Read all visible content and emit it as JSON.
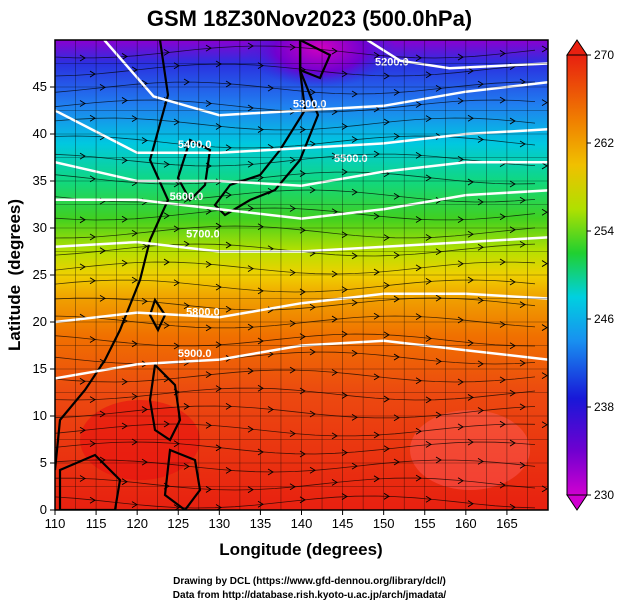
{
  "title": "GSM 18Z30Nov2023 (500.0hPa)",
  "credits": {
    "line1": "Drawing by DCL (https://www.gfd-dennou.org/library/dcl/)",
    "line2": "Data from http://database.rish.kyoto-u.ac.jp/arch/jmadata/"
  },
  "chart_data": {
    "type": "heatmap",
    "xlabel": "Longitude (degrees)",
    "ylabel": "Latitude  (degrees)",
    "xlim": [
      110,
      170
    ],
    "ylim": [
      0,
      50
    ],
    "xticks": [
      110,
      115,
      120,
      125,
      130,
      135,
      140,
      145,
      150,
      155,
      160,
      165
    ],
    "yticks": [
      0,
      5,
      10,
      15,
      20,
      25,
      30,
      35,
      40,
      45
    ],
    "colorbar": {
      "ticks": [
        230,
        238,
        246,
        254,
        262,
        270
      ],
      "range": [
        230,
        270
      ],
      "colors": [
        "#cc00cc",
        "#2020e0",
        "#00c8e0",
        "#20d020",
        "#f0e000",
        "#f08000",
        "#e82000"
      ]
    },
    "contours": [
      {
        "label": "5200.0",
        "points": [
          [
            148,
            50
          ],
          [
            152,
            47.8
          ],
          [
            158,
            47
          ],
          [
            170,
            47.5
          ]
        ]
      },
      {
        "label": "5300.0",
        "points": [
          [
            116,
            50
          ],
          [
            122,
            44
          ],
          [
            130,
            42
          ],
          [
            140,
            42.5
          ],
          [
            150,
            43
          ],
          [
            160,
            44.5
          ],
          [
            170,
            45.5
          ]
        ]
      },
      {
        "label": "5400.0",
        "points": [
          [
            110,
            42.5
          ],
          [
            120,
            38
          ],
          [
            130,
            38
          ],
          [
            140,
            38.5
          ],
          [
            150,
            39
          ],
          [
            160,
            40
          ],
          [
            170,
            40.5
          ]
        ]
      },
      {
        "label": "5500.0",
        "points": [
          [
            110,
            37
          ],
          [
            120,
            35
          ],
          [
            130,
            35
          ],
          [
            140,
            34.5
          ],
          [
            150,
            36
          ],
          [
            160,
            37
          ],
          [
            170,
            37
          ]
        ]
      },
      {
        "label": "5600.0",
        "points": [
          [
            110,
            33
          ],
          [
            120,
            33
          ],
          [
            130,
            32
          ],
          [
            140,
            31
          ],
          [
            150,
            32
          ],
          [
            160,
            33.5
          ],
          [
            170,
            34
          ]
        ]
      },
      {
        "label": "5700.0",
        "points": [
          [
            110,
            28
          ],
          [
            120,
            28.5
          ],
          [
            130,
            27.5
          ],
          [
            140,
            27.5
          ],
          [
            150,
            28
          ],
          [
            160,
            28.5
          ],
          [
            170,
            29
          ]
        ]
      },
      {
        "label": "5800.0",
        "points": [
          [
            110,
            20
          ],
          [
            120,
            21
          ],
          [
            130,
            20.5
          ],
          [
            140,
            22
          ],
          [
            150,
            23
          ],
          [
            160,
            23
          ],
          [
            170,
            22.5
          ]
        ]
      },
      {
        "label": "5900.0",
        "points": [
          [
            110,
            14
          ],
          [
            120,
            15.5
          ],
          [
            130,
            16
          ],
          [
            140,
            17.5
          ],
          [
            150,
            18
          ],
          [
            160,
            17
          ],
          [
            170,
            16
          ]
        ]
      }
    ],
    "contour_labels": [
      {
        "text": "5200.0",
        "x": 151,
        "y": 47.3
      },
      {
        "text": "5300.0",
        "x": 141,
        "y": 42.8
      },
      {
        "text": "5400.0",
        "x": 127,
        "y": 38.5
      },
      {
        "text": "5500.0",
        "x": 146,
        "y": 37.0
      },
      {
        "text": "5600.0",
        "x": 126,
        "y": 33.0
      },
      {
        "text": "5700.0",
        "x": 128,
        "y": 29.0
      },
      {
        "text": "5800.0",
        "x": 128,
        "y": 20.7
      },
      {
        "text": "5900.0",
        "x": 127,
        "y": 16.3
      }
    ]
  }
}
